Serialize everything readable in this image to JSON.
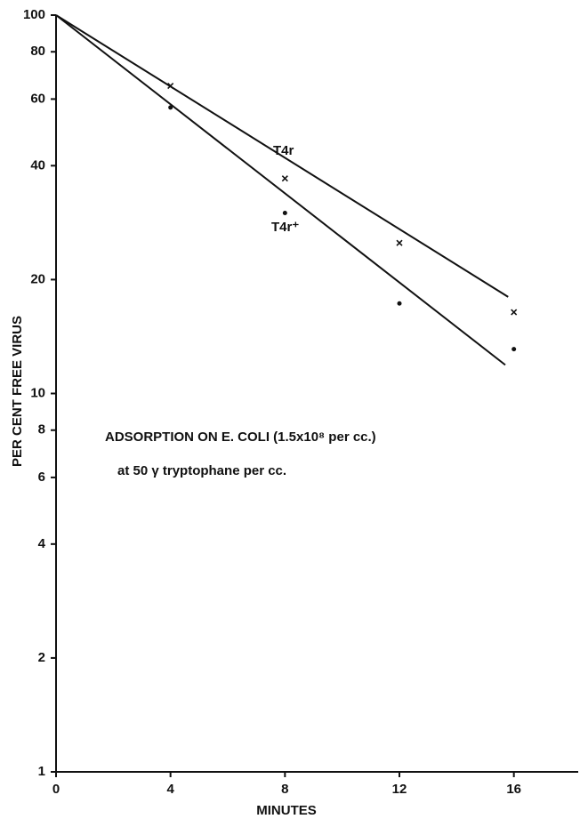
{
  "chart_data": {
    "type": "line",
    "ylabel": "PER CENT FREE VIRUS",
    "xlabel": "MINUTES",
    "annotations": [
      "ADSORPTION ON E. COLI (1.5x10⁸ per cc.)",
      "at 50 γ tryptophane per cc."
    ],
    "log_y": true,
    "xlim": [
      0,
      18
    ],
    "xticks": [
      0,
      4,
      8,
      12,
      16
    ],
    "ylim": [
      1,
      100
    ],
    "yticks": [
      1,
      2,
      4,
      6,
      8,
      10,
      20,
      40,
      60,
      80,
      100
    ],
    "color": "#111111",
    "series": [
      {
        "name": "T4r",
        "marker": "x",
        "x": [
          4,
          8,
          12,
          16
        ],
        "values": [
          65,
          37,
          25,
          16.4
        ],
        "fit": {
          "x": [
            0,
            15.8
          ],
          "values": [
            100,
            18
          ]
        }
      },
      {
        "name": "T4r⁺",
        "marker": "dot",
        "x": [
          4,
          8,
          12,
          16
        ],
        "values": [
          57,
          30,
          17.3,
          13.1
        ],
        "fit": {
          "x": [
            0,
            15.7
          ],
          "values": [
            100,
            11.9
          ]
        }
      }
    ]
  }
}
